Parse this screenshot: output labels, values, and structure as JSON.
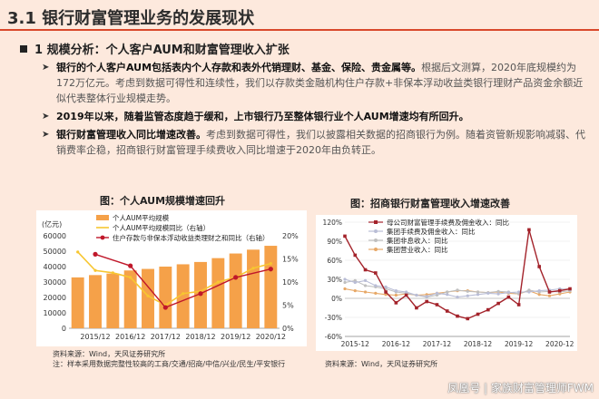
{
  "page": {
    "title": "3.1 银行财富管理业务的发展现状",
    "subheading": "1 规模分析：个人客户AUM和财富管理收入扩张",
    "bullets": [
      {
        "bold": "银行的个人客户AUM包括表内个人存款和表外代销理财、基金、保险、贵金属等。",
        "rest": "根据后文测算，2020年底规模约为172万亿元。考虑到数据可得性和连续性，我们以存款类金融机构住户存款+非保本浮动收益类银行理财产品资金余额近似代表整体行业规模走势。"
      },
      {
        "bold": "2019年以来，随着监管态度趋于缓和，上市银行乃至整体银行业个人AUM增速均有所回升。",
        "rest": ""
      },
      {
        "bold": "银行财富管理收入同比增速改善。",
        "rest": "考虑到数据可得性，我们以披露相关数据的招商银行为例。随着资管新规影响减弱、代销费率企稳，招商银行财富管理手续费收入同比增速于2020年由负转正。"
      }
    ],
    "watermark": "凤凰号 | 家族财富管理师FWM"
  },
  "left_chart": {
    "caption": "图：个人AUM规模增速回升",
    "unit_label": "(亿元)",
    "source": "资料来源：Wind，天风证券研究所",
    "note": "注：样本采用数据完整性较高的工商/交通/招商/中信/兴业/民生/平安银行"
  },
  "right_chart": {
    "caption": "图：招商银行财富管理收入增速改善",
    "source": "资料来源：Wind，天风证券研究所"
  },
  "chart_data": [
    {
      "type": "bar",
      "title": "图：个人AUM规模增速回升",
      "ylabel": "(亿元)",
      "ylim": [
        0,
        60000
      ],
      "y_ticks": [
        "0",
        "10000",
        "20000",
        "30000",
        "40000",
        "50000",
        "60000"
      ],
      "ylim_right": [
        0,
        0.2
      ],
      "y_ticks_right": [
        "0%",
        "5%",
        "10%",
        "15%",
        "20%"
      ],
      "x_tick_labels": [
        "2015/12",
        "2016/12",
        "2017/12",
        "2018/12",
        "2019/12",
        "2020/12"
      ],
      "categories": [
        "2015/06",
        "2015/12",
        "2016/06",
        "2016/12",
        "2017/06",
        "2017/12",
        "2018/06",
        "2018/12",
        "2019/06",
        "2019/12",
        "2020/06",
        "2020/12"
      ],
      "legend": [
        "个人AUM平均规模",
        "个人AUM平均规模同比（右轴）",
        "住户存款与非保本浮动收益类理财之和同比（右轴）"
      ],
      "series": [
        {
          "name": "个人AUM平均规模",
          "kind": "bar",
          "axis": "left",
          "color": "#f5a149",
          "values": [
            33000,
            34500,
            35500,
            37500,
            38500,
            40000,
            41500,
            43000,
            45500,
            48500,
            51000,
            53500
          ]
        },
        {
          "name": "个人AUM平均规模同比（右轴）",
          "kind": "line",
          "axis": "right",
          "color": "#f7c631",
          "values": [
            0.165,
            0.125,
            0.12,
            0.11,
            0.07,
            0.05,
            0.075,
            0.08,
            0.1,
            0.11,
            0.13,
            0.14
          ]
        },
        {
          "name": "住户存款与非保本浮动收益类理财之和同比（右轴）",
          "kind": "line",
          "axis": "right",
          "color": "#c0182a",
          "values": [
            null,
            0.16,
            null,
            0.135,
            null,
            0.045,
            null,
            0.075,
            null,
            0.11,
            null,
            0.128
          ]
        }
      ],
      "legend_position": "top"
    },
    {
      "type": "line",
      "title": "图：招商银行财富管理收入增速改善",
      "ylim": [
        -0.6,
        1.2
      ],
      "y_ticks": [
        "-60%",
        "-30%",
        "0%",
        "30%",
        "60%",
        "90%",
        "120%"
      ],
      "x_tick_labels": [
        "2015-12",
        "2016-12",
        "2017-12",
        "2018-12",
        "2019-12",
        "2020-12"
      ],
      "x_tick_positions": [
        1,
        5,
        9,
        13,
        17,
        21
      ],
      "x": [
        "2015-09",
        "2015-12",
        "2016-03",
        "2016-06",
        "2016-09",
        "2016-12",
        "2017-03",
        "2017-06",
        "2017-09",
        "2017-12",
        "2018-03",
        "2018-06",
        "2018-09",
        "2018-12",
        "2019-03",
        "2019-06",
        "2019-09",
        "2019-12",
        "2020-03",
        "2020-06",
        "2020-09",
        "2020-12",
        "2021-03"
      ],
      "legend": [
        "母公司财富管理手续费及佣金收入：同比",
        "集团手续费及佣金收入：同比",
        "集团非息收入：同比",
        "集团营业收入：同比"
      ],
      "series": [
        {
          "name": "母公司财富管理手续费及佣金收入：同比",
          "color": "#a3222a",
          "values": [
            0.98,
            0.68,
            0.45,
            0.4,
            0.1,
            -0.07,
            0.05,
            -0.15,
            -0.05,
            -0.1,
            -0.2,
            -0.28,
            -0.32,
            -0.25,
            -0.18,
            -0.08,
            0.02,
            -0.1,
            1.08,
            0.5,
            0.1,
            0.12,
            0.15
          ]
        },
        {
          "name": "集团手续费及佣金收入：同比",
          "color": "#b9bdd6",
          "values": [
            0.3,
            0.25,
            0.28,
            0.2,
            0.18,
            0.12,
            0.1,
            0.05,
            0.03,
            0.08,
            0.06,
            0.02,
            0.04,
            0.06,
            0.08,
            0.07,
            0.09,
            0.1,
            0.1,
            0.12,
            0.13,
            0.15,
            0.14
          ]
        },
        {
          "name": "集团非息收入：同比",
          "color": "#bfbfbf",
          "values": [
            0.25,
            0.28,
            0.2,
            0.18,
            0.15,
            0.1,
            0.08,
            0.05,
            0.02,
            0.05,
            0.1,
            0.13,
            0.11,
            0.1,
            0.09,
            0.11,
            0.1,
            0.07,
            0.13,
            0.1,
            0.11,
            0.1,
            0.12
          ]
        },
        {
          "name": "集团营业收入：同比",
          "color": "#e7a867",
          "values": [
            0.15,
            0.12,
            0.1,
            0.08,
            0.06,
            0.05,
            0.07,
            0.05,
            0.06,
            0.08,
            0.1,
            0.12,
            0.12,
            0.1,
            0.09,
            0.1,
            0.08,
            0.07,
            0.12,
            0.06,
            0.04,
            0.07,
            0.1
          ]
        }
      ],
      "legend_position": "top-center"
    }
  ]
}
